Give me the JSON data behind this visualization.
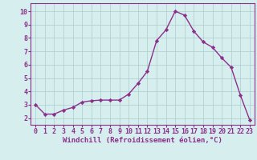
{
  "x": [
    0,
    1,
    2,
    3,
    4,
    5,
    6,
    7,
    8,
    9,
    10,
    11,
    12,
    13,
    14,
    15,
    16,
    17,
    18,
    19,
    20,
    21,
    22,
    23
  ],
  "y": [
    3.0,
    2.3,
    2.3,
    2.6,
    2.8,
    3.2,
    3.3,
    3.35,
    3.35,
    3.35,
    3.8,
    4.6,
    5.5,
    7.8,
    8.6,
    10.0,
    9.7,
    8.5,
    7.7,
    7.3,
    6.5,
    5.8,
    3.7,
    1.85
  ],
  "line_color": "#8b2f8b",
  "marker": "D",
  "marker_size": 2.2,
  "bg_color": "#d6eeee",
  "grid_color": "#aacccc",
  "xlabel": "Windchill (Refroidissement éolien,°C)",
  "xlabel_color": "#8b2f8b",
  "xlabel_fontsize": 6.5,
  "tick_color": "#8b2f8b",
  "tick_fontsize": 6.0,
  "xlim": [
    -0.5,
    23.5
  ],
  "ylim": [
    1.5,
    10.6
  ],
  "yticks": [
    2,
    3,
    4,
    5,
    6,
    7,
    8,
    9,
    10
  ],
  "xticks": [
    0,
    1,
    2,
    3,
    4,
    5,
    6,
    7,
    8,
    9,
    10,
    11,
    12,
    13,
    14,
    15,
    16,
    17,
    18,
    19,
    20,
    21,
    22,
    23
  ],
  "line_width": 1.0,
  "spine_color": "#8b2f8b"
}
